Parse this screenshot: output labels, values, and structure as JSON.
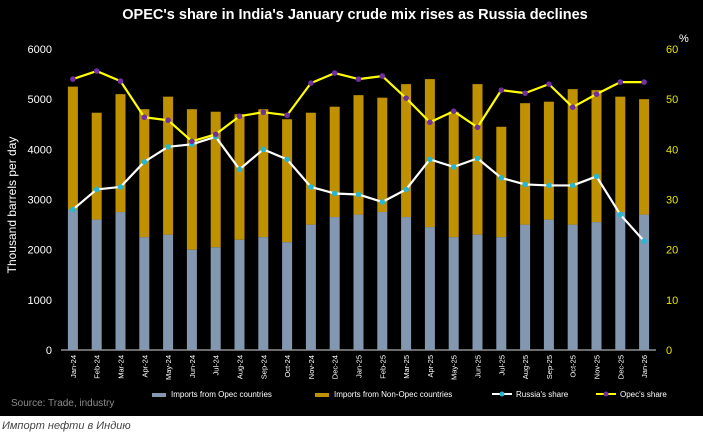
{
  "chart_data": {
    "type": "bar+line",
    "title": "OPEC's share in India's January crude mix rises as Russia declines",
    "ylabel": "Thousand barrels per day",
    "y2label": "%",
    "ylim": [
      0,
      6000
    ],
    "y2lim": [
      0,
      60
    ],
    "yticks": [
      "0",
      "1000",
      "2000",
      "3000",
      "4000",
      "5000",
      "6000"
    ],
    "y2ticks": [
      "0",
      "10",
      "20",
      "30",
      "40",
      "50",
      "60"
    ],
    "categories": [
      "Jan-24",
      "Feb-24",
      "Mar-24",
      "Apr-24",
      "May-24",
      "Jun-24",
      "Jul-24",
      "Aug-24",
      "Sep-24",
      "Oct-24",
      "Nov-24",
      "Dec-24",
      "Jan-25",
      "Feb-25",
      "Mar-25",
      "Apr-25",
      "May-25",
      "Jun-25",
      "Jul-25",
      "Aug-25",
      "Sep-25",
      "Oct-25",
      "Nov-25",
      "Dec-25",
      "Jan-26"
    ],
    "stacked_series": [
      {
        "name": "Imports from Opec countries",
        "color": "#8497b0",
        "values": [
          2800,
          2600,
          2750,
          2250,
          2300,
          2000,
          2050,
          2200,
          2250,
          2150,
          2500,
          2650,
          2700,
          2750,
          2650,
          2450,
          2250,
          2300,
          2250,
          2500,
          2600,
          2500,
          2550,
          2750,
          2700
        ]
      },
      {
        "name": "Imports from Non-Opec countries",
        "color": "#bf9000",
        "values": [
          2450,
          2130,
          2350,
          2550,
          2750,
          2800,
          2700,
          2500,
          2550,
          2450,
          2230,
          2200,
          2380,
          2280,
          2650,
          2950,
          2500,
          3000,
          2200,
          2420,
          2350,
          2700,
          2630,
          2300,
          2300
        ]
      }
    ],
    "line_series": [
      {
        "name": "Russia's share",
        "axis": "right",
        "color": "#ffffff",
        "marker": "#29b6d1",
        "values": [
          28,
          32,
          32.5,
          37.5,
          40.5,
          41,
          42.5,
          36,
          40,
          38,
          32.5,
          31.2,
          31,
          29.5,
          32,
          38,
          36.5,
          38.2,
          34.3,
          33,
          32.8,
          32.8,
          34.6,
          27,
          21.7
        ]
      },
      {
        "name": "Opec's share",
        "axis": "right",
        "color": "#ffff00",
        "marker": "#7030a0",
        "values": [
          54,
          55.6,
          53.6,
          46.4,
          45.8,
          41.6,
          43,
          46.6,
          47.4,
          46.8,
          53.2,
          55.2,
          54,
          54.6,
          50.2,
          45.4,
          47.6,
          44.4,
          51.8,
          51.2,
          53,
          48.4,
          51,
          53.4,
          53.4
        ]
      }
    ],
    "legend": [
      "Imports from Opec countries",
      "Imports from Non-Opec countries",
      "Russia's share",
      "Opec's share"
    ],
    "legend_position": "bottom",
    "grid": false
  },
  "source_note": "Source: Trade, industry",
  "caption": "Импорт нефти в Индию"
}
